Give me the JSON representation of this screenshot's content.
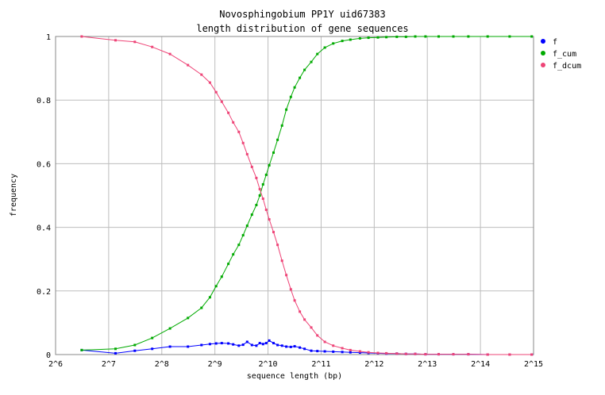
{
  "chart_data": {
    "type": "line",
    "title": [
      "Novosphingobium PP1Y uid67383",
      "length distribution of gene sequences"
    ],
    "xlabel": "sequence length (bp)",
    "ylabel": "frequency",
    "x_scale": "log2",
    "xlim": [
      64,
      32768
    ],
    "ylim": [
      0,
      1
    ],
    "x_ticks": [
      64,
      128,
      256,
      512,
      1024,
      2048,
      4096,
      8192,
      16384,
      32768
    ],
    "x_tick_labels": [
      "2^6",
      "2^7",
      "2^8",
      "2^9",
      "2^10",
      "2^11",
      "2^12",
      "2^13",
      "2^14",
      "2^15"
    ],
    "y_ticks": [
      0,
      0.2,
      0.4,
      0.6,
      0.8,
      1
    ],
    "y_tick_labels": [
      "0",
      "0.2",
      "0.4",
      "0.6",
      "0.8",
      "1"
    ],
    "grid": true,
    "legend_position": "right",
    "series": [
      {
        "name": "f",
        "color": "#0000ff",
        "x": [
          90,
          140,
          180,
          226,
          285,
          360,
          430,
          480,
          520,
          560,
          610,
          650,
          700,
          740,
          780,
          830,
          880,
          920,
          960,
          1000,
          1040,
          1100,
          1160,
          1230,
          1300,
          1380,
          1450,
          1550,
          1650,
          1800,
          1950,
          2150,
          2400,
          2700,
          3000,
          3400,
          3800,
          4300,
          4800,
          5500,
          6200,
          7000,
          8000,
          9500,
          11500,
          14000,
          18000,
          24000,
          32000
        ],
        "y": [
          0.014,
          0.004,
          0.012,
          0.018,
          0.025,
          0.025,
          0.03,
          0.033,
          0.035,
          0.036,
          0.035,
          0.032,
          0.028,
          0.031,
          0.04,
          0.03,
          0.028,
          0.036,
          0.033,
          0.036,
          0.044,
          0.036,
          0.03,
          0.028,
          0.025,
          0.024,
          0.026,
          0.022,
          0.018,
          0.012,
          0.011,
          0.01,
          0.009,
          0.008,
          0.007,
          0.006,
          0.005,
          0.004,
          0.003,
          0.003,
          0.002,
          0.002,
          0.001,
          0.001,
          0.001,
          0.001,
          0.0,
          0.0,
          0.0
        ]
      },
      {
        "name": "f_cum",
        "color": "#00aa00",
        "x": [
          90,
          140,
          180,
          226,
          285,
          360,
          430,
          480,
          520,
          560,
          610,
          650,
          700,
          740,
          780,
          830,
          880,
          920,
          960,
          1000,
          1040,
          1100,
          1160,
          1230,
          1300,
          1380,
          1450,
          1550,
          1650,
          1800,
          1950,
          2150,
          2400,
          2700,
          3000,
          3400,
          3800,
          4300,
          4800,
          5500,
          6200,
          7000,
          8000,
          9500,
          11500,
          14000,
          18000,
          24000,
          32000
        ],
        "y": [
          0.014,
          0.018,
          0.03,
          0.052,
          0.082,
          0.115,
          0.147,
          0.18,
          0.215,
          0.245,
          0.285,
          0.315,
          0.345,
          0.375,
          0.405,
          0.44,
          0.47,
          0.5,
          0.535,
          0.565,
          0.595,
          0.635,
          0.675,
          0.72,
          0.77,
          0.81,
          0.84,
          0.87,
          0.895,
          0.92,
          0.945,
          0.965,
          0.978,
          0.986,
          0.99,
          0.994,
          0.996,
          0.997,
          0.998,
          0.999,
          0.999,
          1.0,
          1.0,
          1.0,
          1.0,
          1.0,
          1.0,
          1.0,
          1.0
        ]
      },
      {
        "name": "f_dcum",
        "color": "#ee4477",
        "x": [
          90,
          140,
          180,
          226,
          285,
          360,
          430,
          480,
          520,
          560,
          610,
          650,
          700,
          740,
          780,
          830,
          880,
          920,
          960,
          1000,
          1040,
          1100,
          1160,
          1230,
          1300,
          1380,
          1450,
          1550,
          1650,
          1800,
          1950,
          2150,
          2400,
          2700,
          3000,
          3400,
          3800,
          4300,
          4800,
          5500,
          6200,
          7000,
          8000,
          9500,
          11500,
          14000,
          18000,
          24000,
          32000
        ],
        "y": [
          1.0,
          0.988,
          0.983,
          0.967,
          0.945,
          0.91,
          0.88,
          0.855,
          0.825,
          0.795,
          0.76,
          0.73,
          0.7,
          0.665,
          0.63,
          0.59,
          0.555,
          0.52,
          0.49,
          0.455,
          0.425,
          0.385,
          0.345,
          0.295,
          0.25,
          0.205,
          0.17,
          0.135,
          0.11,
          0.085,
          0.06,
          0.04,
          0.028,
          0.02,
          0.014,
          0.01,
          0.007,
          0.005,
          0.004,
          0.003,
          0.002,
          0.002,
          0.001,
          0.001,
          0.001,
          0.001,
          0.0,
          0.0,
          0.0
        ]
      }
    ]
  }
}
